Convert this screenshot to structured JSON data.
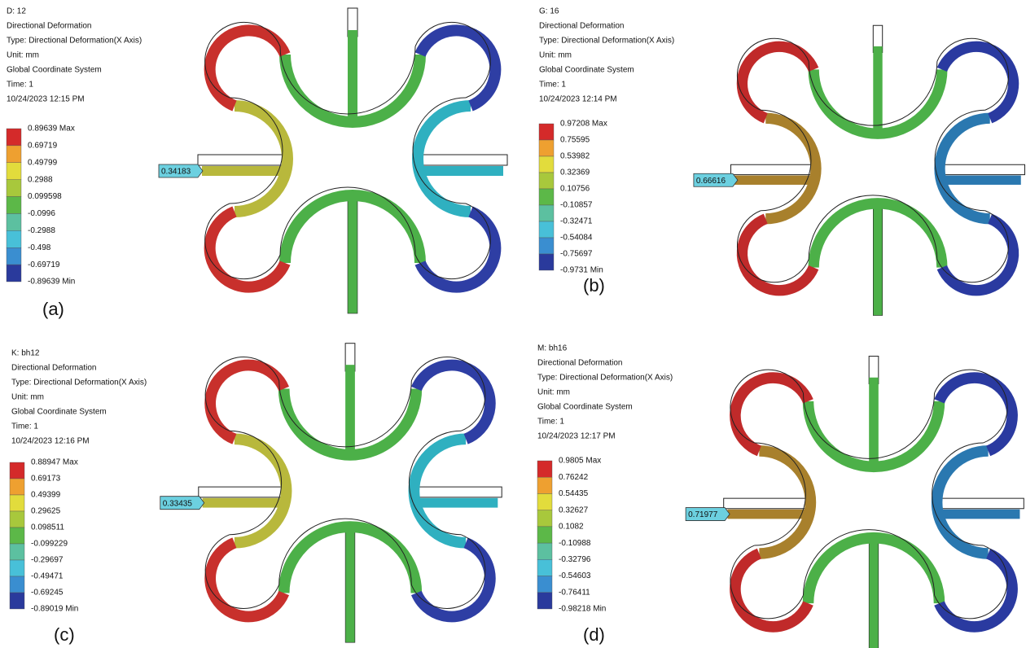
{
  "panels": [
    {
      "label": "(a)",
      "info": [
        "D: 12",
        "Directional Deformation",
        "Type: Directional Deformation(X Axis)",
        "Unit: mm",
        "Global Coordinate System",
        "Time: 1",
        "10/24/2023 12:15 PM"
      ],
      "legend": [
        "0.89639 Max",
        "0.69719",
        "0.49799",
        "0.2988",
        "0.099598",
        "-0.0996",
        "-0.2988",
        "-0.498",
        "-0.69719",
        "-0.89639 Min"
      ],
      "probe": "0.34183"
    },
    {
      "label": "(b)",
      "info": [
        "G: 16",
        "Directional Deformation",
        "Type: Directional Deformation(X Axis)",
        "Unit: mm",
        "Global Coordinate System",
        "Time: 1",
        "10/24/2023 12:14 PM"
      ],
      "legend": [
        "0.97208 Max",
        "0.75595",
        "0.53982",
        "0.32369",
        "0.10756",
        "-0.10857",
        "-0.32471",
        "-0.54084",
        "-0.75697",
        "-0.9731 Min"
      ],
      "probe": "0.66616"
    },
    {
      "label": "(c)",
      "info": [
        "K: bh12",
        "Directional Deformation",
        "Type: Directional Deformation(X Axis)",
        "Unit: mm",
        "Global Coordinate System",
        "Time: 1",
        "10/24/2023 12:16 PM"
      ],
      "legend": [
        "0.88947 Max",
        "0.69173",
        "0.49399",
        "0.29625",
        "0.098511",
        "-0.099229",
        "-0.29697",
        "-0.49471",
        "-0.69245",
        "-0.89019 Min"
      ],
      "probe": "0.33435"
    },
    {
      "label": "(d)",
      "info": [
        "M: bh16",
        "Directional Deformation",
        "Type: Directional Deformation(X Axis)",
        "Unit: mm",
        "Global Coordinate System",
        "Time: 1",
        "10/24/2023 12:17 PM"
      ],
      "legend": [
        "0.9805 Max",
        "0.76242",
        "0.54435",
        "0.32627",
        "0.1082",
        "-0.10988",
        "-0.32796",
        "-0.54603",
        "-0.76411",
        "-0.98218 Min"
      ],
      "probe": "0.71977"
    }
  ]
}
